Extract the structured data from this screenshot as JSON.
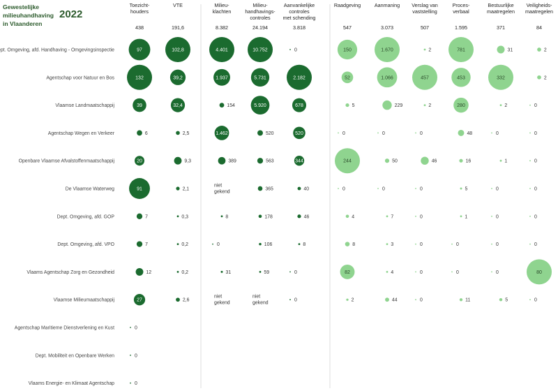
{
  "title": "Gewestelijke milieuhandhaving in Vlaanderen",
  "year": "2022",
  "colors": {
    "dark": "#1b6b2f",
    "light": "#8fd48f",
    "text_on_dark": "#ffffff",
    "text_on_light": "#2a4a2a",
    "divider": "#dcdcdc"
  },
  "chart_data": {
    "type": "table",
    "columns": [
      {
        "label": "Toezicht-\nhouders",
        "total": "438",
        "shade": "dark"
      },
      {
        "label": "VTE",
        "total": "191,6",
        "shade": "dark"
      },
      {
        "label": "Milieu-\nklachten",
        "total": "8.382",
        "shade": "dark"
      },
      {
        "label": "Milieu-\nhandhavings-\ncontroles",
        "total": "24.194",
        "shade": "dark"
      },
      {
        "label": "Aanvankelijke\ncontroles\nmet schending",
        "total": "3.818",
        "shade": "dark"
      },
      {
        "label": "Raadgeving",
        "total": "547",
        "shade": "light"
      },
      {
        "label": "Aanmaning",
        "total": "3.073",
        "shade": "light"
      },
      {
        "label": "Verslag van\nvaststelling",
        "total": "507",
        "shade": "light"
      },
      {
        "label": "Proces-\nverbaal",
        "total": "1.595",
        "shade": "light"
      },
      {
        "label": "Bestuurlijke\nmaatregelen",
        "total": "371",
        "shade": "light"
      },
      {
        "label": "Veiligheids-\nmaatregelen",
        "total": "84",
        "shade": "light"
      }
    ],
    "rows": [
      {
        "name": "Dept. Omgeving, afd. Handhaving - Omgevingsinspectie",
        "values": [
          "97",
          "102,8",
          "4.401",
          "10.752",
          "0",
          "150",
          "1.670",
          "2",
          "781",
          "31",
          "2"
        ]
      },
      {
        "name": "Agentschap voor Natuur en Bos",
        "values": [
          "132",
          "39,2",
          "1.937",
          "5.731",
          "2.182",
          "52",
          "1.066",
          "457",
          "453",
          "332",
          "2"
        ]
      },
      {
        "name": "Vlaamse Landmaatschappij",
        "values": [
          "39",
          "32,4",
          "154",
          "5.920",
          "678",
          "5",
          "229",
          "2",
          "280",
          "2",
          "0"
        ]
      },
      {
        "name": "Agentschap Wegen en Verkeer",
        "values": [
          "6",
          "2,5",
          "1.462",
          "520",
          "520",
          "0",
          "0",
          "0",
          "48",
          "0",
          "0"
        ]
      },
      {
        "name": "Openbare Vlaamse Afvalstoffenmaatschappij",
        "values": [
          "20",
          "9,3",
          "389",
          "563",
          "344",
          "244",
          "50",
          "46",
          "16",
          "1",
          "0"
        ]
      },
      {
        "name": "De Vlaamse Waterweg",
        "values": [
          "91",
          "2,1",
          "niet\ngekend",
          "365",
          "40",
          "0",
          "0",
          "0",
          "5",
          "0",
          "0"
        ]
      },
      {
        "name": "Dept. Omgeving, afd. GOP",
        "values": [
          "7",
          "0,3",
          "8",
          "178",
          "46",
          "4",
          "7",
          "0",
          "1",
          "0",
          "0"
        ]
      },
      {
        "name": "Dept. Omgeving, afd. VPO",
        "values": [
          "7",
          "0,2",
          "0",
          "106",
          "8",
          "8",
          "3",
          "0",
          "0",
          "0",
          "0"
        ]
      },
      {
        "name": "Vlaams Agentschap Zorg en Gezondheid",
        "values": [
          "12",
          "0,2",
          "31",
          "59",
          "0",
          "82",
          "4",
          "0",
          "0",
          "0",
          "80"
        ]
      },
      {
        "name": "Vlaamse Milieumaatschappij",
        "values": [
          "27",
          "2,6",
          "niet\ngekend",
          "niet\ngekend",
          "0",
          "2",
          "44",
          "0",
          "11",
          "5",
          "0"
        ]
      },
      {
        "name": "Agentschap Maritieme Dienstverlening en Kust",
        "values": [
          "0",
          null,
          null,
          null,
          null,
          null,
          null,
          null,
          null,
          null,
          null
        ]
      },
      {
        "name": "Dept. Mobiliteit en Openbare Werken",
        "values": [
          "0",
          null,
          null,
          null,
          null,
          null,
          null,
          null,
          null,
          null,
          null
        ]
      },
      {
        "name": "Vlaams Energie- en Klimaat Agentschap",
        "values": [
          "0",
          null,
          null,
          null,
          null,
          null,
          null,
          null,
          null,
          null,
          null
        ]
      }
    ]
  }
}
